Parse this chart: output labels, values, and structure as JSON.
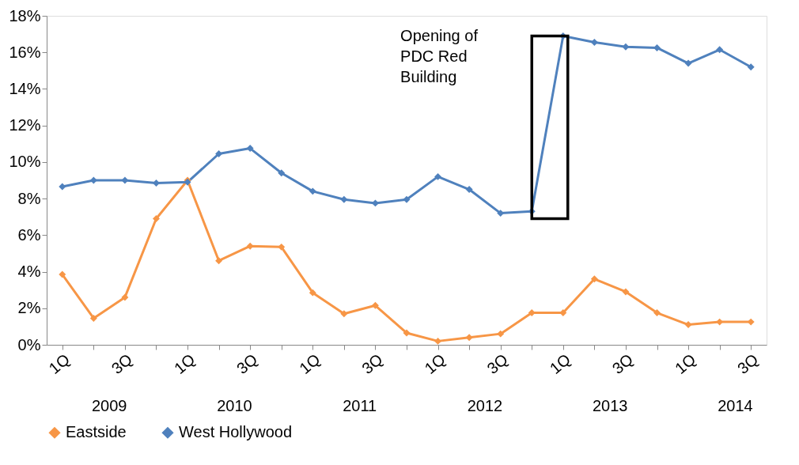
{
  "chart_data": {
    "type": "line",
    "categories": [
      "1Q",
      null,
      "3Q",
      null,
      "1Q",
      null,
      "3Q",
      null,
      "1Q",
      null,
      "3Q",
      null,
      "1Q",
      null,
      "3Q",
      null,
      "1Q",
      null,
      "3Q",
      null,
      "1Q",
      null,
      "3Q"
    ],
    "series": [
      {
        "name": "Eastside",
        "color": "#f79646",
        "values": [
          3.85,
          1.45,
          2.6,
          6.9,
          9.0,
          4.6,
          5.4,
          5.35,
          2.85,
          1.7,
          2.15,
          0.65,
          0.2,
          0.4,
          0.6,
          1.75,
          1.75,
          3.6,
          2.9,
          1.75,
          1.1,
          1.25,
          1.25
        ]
      },
      {
        "name": "West Hollywood",
        "color": "#4f81bd",
        "values": [
          8.65,
          9.0,
          9.0,
          8.85,
          8.9,
          10.45,
          10.75,
          9.4,
          8.4,
          7.95,
          7.75,
          7.95,
          9.2,
          8.5,
          7.2,
          7.3,
          16.9,
          16.55,
          16.3,
          16.25,
          15.4,
          16.15,
          15.2
        ]
      }
    ],
    "ylim": [
      0,
      18
    ],
    "yticks": [
      {
        "value": 0,
        "label": "0%"
      },
      {
        "value": 2,
        "label": "2%"
      },
      {
        "value": 4,
        "label": "4%"
      },
      {
        "value": 6,
        "label": "6%"
      },
      {
        "value": 8,
        "label": "8%"
      },
      {
        "value": 10,
        "label": "10%"
      },
      {
        "value": 12,
        "label": "12%"
      },
      {
        "value": 14,
        "label": "14%"
      },
      {
        "value": 16,
        "label": "16%"
      },
      {
        "value": 18,
        "label": "18%"
      }
    ],
    "annotations": [
      "Opening of PDC Red Building",
      "2009",
      "2010",
      "2011",
      "2012",
      "2013",
      "2014"
    ],
    "marker": "diamond",
    "line_style": "solid",
    "grid": false,
    "legend": "bottom"
  }
}
